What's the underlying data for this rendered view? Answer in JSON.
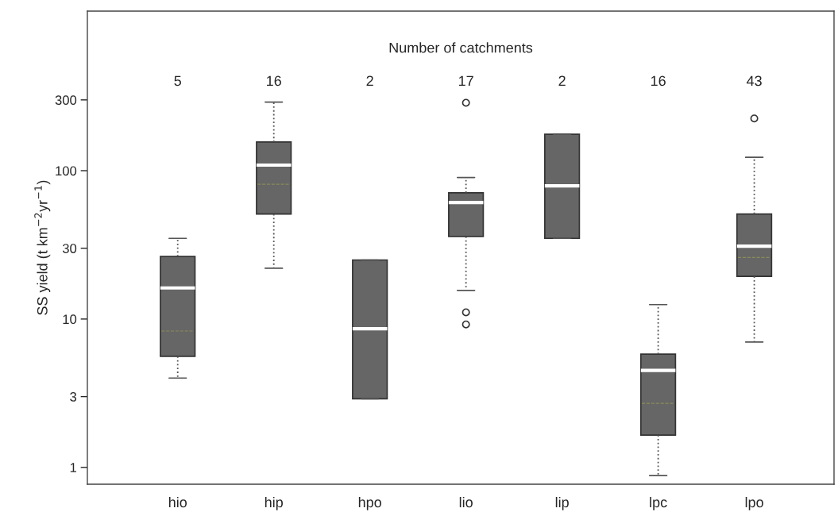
{
  "chart_data": {
    "type": "box",
    "categories": [
      "hio",
      "hip",
      "hpo",
      "lio",
      "lip",
      "lpc",
      "lpo"
    ],
    "boxes": [
      {
        "low": 4.0,
        "q1": 5.6,
        "median": 16.2,
        "q3": 26.4,
        "high": 35,
        "mean": 8.3
      },
      {
        "low": 22,
        "q1": 51,
        "median": 109,
        "q3": 156,
        "high": 290,
        "mean": 81
      },
      {
        "low": 2.9,
        "q1": 2.9,
        "median": 8.6,
        "q3": 25,
        "high": 25
      },
      {
        "low": 15.6,
        "q1": 36,
        "median": 61,
        "q3": 71,
        "high": 90,
        "outliers": [
          287,
          11.1,
          9.2
        ]
      },
      {
        "low": 35,
        "q1": 35,
        "median": 79,
        "q3": 176,
        "high": 176
      },
      {
        "low": 0.88,
        "q1": 1.65,
        "median": 4.5,
        "q3": 5.8,
        "high": 12.5,
        "mean": 2.7
      },
      {
        "low": 7.0,
        "q1": 19.4,
        "median": 31,
        "q3": 51,
        "high": 123,
        "mean": 26,
        "outliers": [
          225
        ]
      }
    ],
    "color": "#666666",
    "ylabel": "SS yield (t km$^{−2}$yr$^{−1}$)",
    "log": "y",
    "ylim": [
      0.77,
      1190
    ],
    "yticks": [
      1,
      3,
      10,
      30,
      100,
      300
    ],
    "annotations": [
      "Number of catchments",
      "5",
      "16",
      "2",
      "17",
      "2",
      "16",
      "43"
    ],
    "grid": false
  }
}
